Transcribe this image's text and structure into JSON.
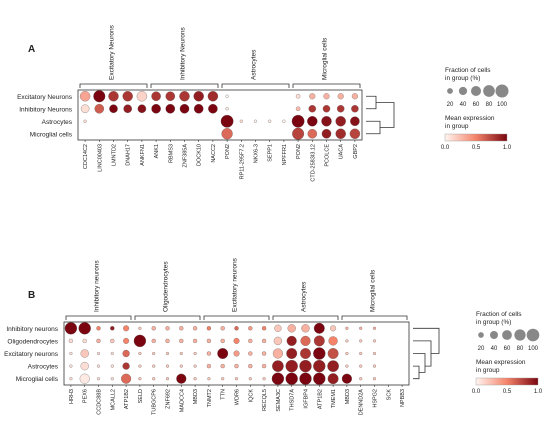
{
  "chart_data": [
    {
      "type": "dotplot",
      "panel_label": "A",
      "rows": [
        "Excitatory Neurons",
        "Inhibitory Neurons",
        "Astrocytes",
        "Microglial cells"
      ],
      "groups": [
        {
          "name": "Excitatory Neurons",
          "genes": [
            "CDC14C2",
            "LINC00403",
            "LMNTD2",
            "DNAH17",
            "ANKFN1"
          ]
        },
        {
          "name": "Inhibitory Neurons",
          "genes": [
            "ANK1",
            "RBMS3",
            "ZNF385A",
            "DOCK10",
            "NACC2"
          ]
        },
        {
          "name": "Astrocytes",
          "genes": [
            "PON2",
            "RP11-295F7.2",
            "NKX6-3",
            "SEPP1",
            "NPFFR1"
          ]
        },
        {
          "name": "Microglial cells",
          "genes": [
            "PON2",
            "CTD-2583I3.12",
            "PCOLCE",
            "UACA",
            "GBP2"
          ]
        }
      ],
      "fraction": [
        [
          60,
          80,
          60,
          60,
          60,
          50,
          50,
          60,
          60,
          60,
          5,
          0,
          0,
          0,
          0,
          10,
          20,
          20,
          20,
          20
        ],
        [
          40,
          50,
          40,
          40,
          40,
          50,
          50,
          50,
          50,
          50,
          5,
          0,
          0,
          0,
          0,
          10,
          30,
          30,
          30,
          30
        ],
        [
          5,
          0,
          0,
          0,
          0,
          0,
          0,
          0,
          0,
          0,
          90,
          5,
          5,
          5,
          5,
          90,
          60,
          60,
          60,
          50
        ],
        [
          0,
          0,
          0,
          0,
          0,
          0,
          0,
          0,
          0,
          0,
          70,
          0,
          0,
          0,
          0,
          80,
          50,
          50,
          60,
          60
        ]
      ],
      "expression": [
        [
          0.35,
          1.0,
          0.8,
          0.8,
          0.15,
          0.8,
          0.8,
          0.8,
          0.9,
          0.85,
          0,
          0,
          0,
          0,
          0,
          0.1,
          0.3,
          0.3,
          0.3,
          0.3
        ],
        [
          0.1,
          0.65,
          1.0,
          0.9,
          0.95,
          1.0,
          1.0,
          1.0,
          1.0,
          1.0,
          0.05,
          0,
          0,
          0,
          0,
          0.25,
          0.8,
          0.8,
          0.8,
          0.8
        ],
        [
          0.1,
          0,
          0,
          0,
          0,
          0,
          0,
          0,
          0,
          0,
          1.0,
          0.1,
          0,
          0.05,
          0,
          1.0,
          1.0,
          0.95,
          0.9,
          0.95
        ],
        [
          0,
          0,
          0,
          0,
          0,
          0,
          0,
          0,
          0,
          0,
          0.6,
          0,
          0,
          0,
          0,
          0.75,
          0.6,
          0.9,
          0.85,
          0.75
        ]
      ],
      "size_legend": {
        "title": "Fraction of cells\nin group (%)",
        "ticks": [
          "20",
          "40",
          "60",
          "80",
          "100"
        ]
      },
      "color_legend": {
        "title": "Mean expression\nin group",
        "ticks": [
          "0.0",
          "0.5",
          "1.0"
        ]
      }
    },
    {
      "type": "dotplot",
      "panel_label": "B",
      "rows": [
        "Inhibitory neurons",
        "Oligodendrocytes",
        "Excitatory neurons",
        "Astrocytes",
        "Microglial cells"
      ],
      "groups": [
        {
          "name": "Inhibitory neurons",
          "genes": [
            "HRH3",
            "PEX6",
            "CCDC88B",
            "MCALL2",
            "ATP1B2"
          ]
        },
        {
          "name": "Oligodendrocytes",
          "genes": [
            "SELD",
            "TUBGCP6",
            "ZNF692",
            "MADCC4",
            "MBD3"
          ]
        },
        {
          "name": "Excitatory neurons",
          "genes": [
            "TNMT2",
            "TTN",
            "WDR6",
            "IQCK",
            "RECQL5"
          ]
        },
        {
          "name": "Astrocytes",
          "genes": [
            "SEMA3C",
            "THSD7A",
            "IGFBP4",
            "ATP1B2",
            "TMEM1"
          ]
        },
        {
          "name": "Microglial cells",
          "genes": [
            "MBD3",
            "DENND2A",
            "HSPG2",
            "SCK",
            "NPBB3"
          ]
        }
      ],
      "fraction": [
        [
          90,
          90,
          10,
          10,
          20,
          5,
          10,
          10,
          10,
          10,
          10,
          10,
          10,
          10,
          10,
          30,
          40,
          40,
          70,
          20,
          5,
          5,
          5,
          0,
          0
        ],
        [
          10,
          10,
          10,
          10,
          20,
          90,
          10,
          10,
          10,
          10,
          10,
          10,
          20,
          10,
          10,
          40,
          60,
          60,
          70,
          50,
          5,
          5,
          5,
          0,
          0
        ],
        [
          5,
          40,
          5,
          5,
          30,
          5,
          5,
          5,
          5,
          5,
          10,
          70,
          20,
          10,
          10,
          60,
          70,
          70,
          90,
          70,
          5,
          5,
          5,
          0,
          0
        ],
        [
          5,
          40,
          5,
          5,
          30,
          5,
          5,
          5,
          5,
          5,
          10,
          10,
          10,
          10,
          10,
          80,
          90,
          90,
          90,
          80,
          5,
          5,
          5,
          0,
          0
        ],
        [
          5,
          60,
          5,
          5,
          60,
          5,
          5,
          5,
          60,
          5,
          5,
          5,
          5,
          5,
          5,
          90,
          90,
          90,
          90,
          70,
          60,
          5,
          5,
          0,
          0
        ]
      ],
      "expression": [
        [
          1.0,
          1.0,
          0.5,
          0.9,
          0.5,
          0.2,
          0.3,
          0.3,
          0.3,
          0.3,
          0.5,
          0.3,
          0.6,
          0.4,
          0.5,
          0.2,
          0.3,
          0.3,
          1.0,
          0.2,
          0.3,
          0.3,
          0.3,
          0,
          0
        ],
        [
          0.1,
          0.1,
          0.3,
          0.2,
          0.5,
          1.0,
          0.3,
          0.3,
          0.3,
          0.3,
          0.3,
          0.3,
          0.5,
          0.3,
          0.3,
          0.2,
          0.9,
          0.6,
          0.8,
          0.5,
          0.2,
          0.2,
          0.2,
          0,
          0
        ],
        [
          0.1,
          0.2,
          0.1,
          0.1,
          0.6,
          0.2,
          0.2,
          0.2,
          0.2,
          0.2,
          0.3,
          1.0,
          0.4,
          0.3,
          0.3,
          0.3,
          0.9,
          0.8,
          1.0,
          0.7,
          0.2,
          0.2,
          0.2,
          0,
          0
        ],
        [
          0.1,
          0.1,
          0.1,
          0.1,
          0.8,
          0.2,
          0.2,
          0.2,
          0.2,
          0.2,
          0.3,
          0.3,
          0.3,
          0.3,
          0.3,
          0.9,
          0.9,
          0.9,
          0.9,
          0.9,
          0.2,
          0.2,
          0.2,
          0,
          0
        ],
        [
          0.1,
          0.05,
          0.1,
          0.1,
          0.6,
          0.2,
          0.2,
          0.2,
          1.0,
          0.2,
          0.2,
          0.2,
          0.2,
          0.2,
          0.2,
          1.0,
          1.0,
          1.0,
          1.0,
          0.9,
          1.0,
          0.2,
          0.2,
          0,
          0
        ]
      ],
      "size_legend": {
        "title": "Fraction of cells\nin group (%)",
        "ticks": [
          "20",
          "40",
          "60",
          "80",
          "100"
        ]
      },
      "color_legend": {
        "title": "Mean expression\nin group",
        "ticks": [
          "0.0",
          "0.5",
          "1.0"
        ]
      }
    }
  ],
  "colors": {
    "low": "#fff5f0",
    "mid": "#f4836a",
    "high": "#7a0510",
    "frame": "#333333"
  }
}
